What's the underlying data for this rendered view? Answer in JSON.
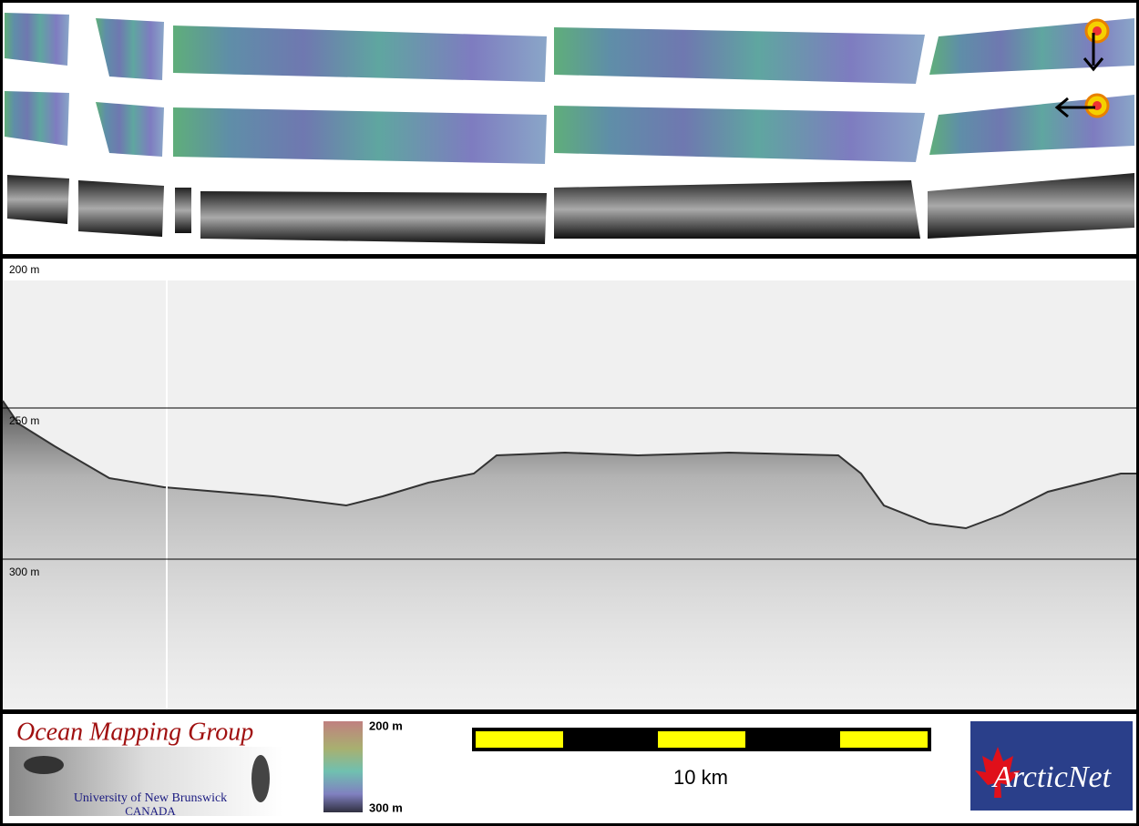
{
  "depth_labels": [
    "200 m",
    "250 m",
    "300 m"
  ],
  "logo_left": {
    "title": "Ocean Mapping Group",
    "institution": "University of New Brunswick",
    "country": "CANADA"
  },
  "colorbar": {
    "top": "200 m",
    "bottom": "300 m"
  },
  "scale_bar": {
    "label": "10 km"
  },
  "logo_right": {
    "title": "ArcticNet"
  }
}
